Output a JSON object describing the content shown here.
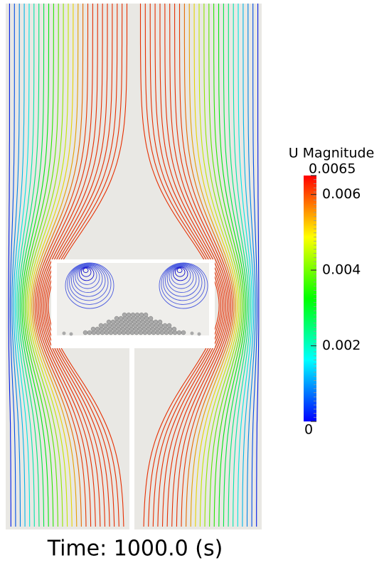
{
  "colorbar": {
    "title": "U Magnitude",
    "lim": [
      0,
      0.0065
    ],
    "ticks": [
      0.0065,
      0.006,
      0.004,
      0.002,
      0
    ]
  },
  "caption": "Time: 1000.0 (s)"
}
